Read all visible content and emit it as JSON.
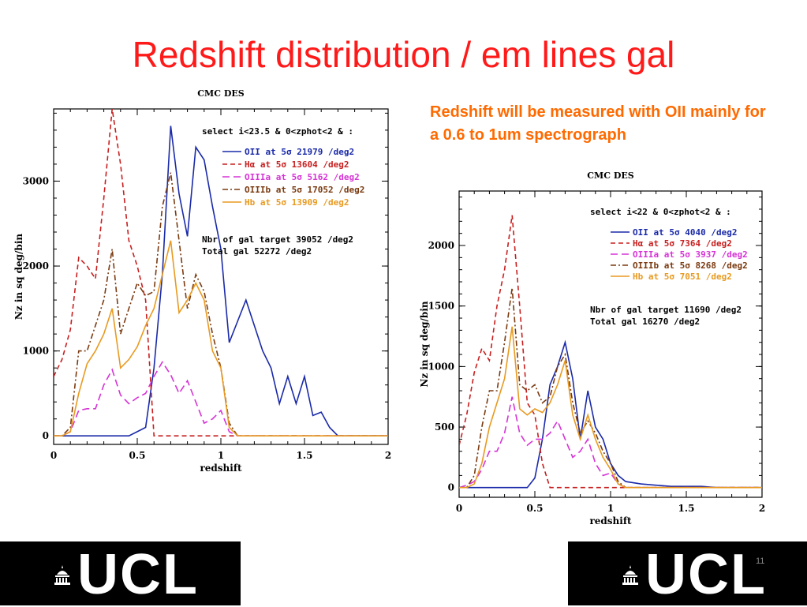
{
  "slide": {
    "title": "Redshift distribution / em lines gal",
    "note": "Redshift will be measured with OII mainly for a 0.6 to 1um spectrograph",
    "logo_text": "UCL",
    "page_number": "11"
  },
  "chart_data": [
    {
      "type": "line",
      "title": "CMC DES",
      "xlabel": "redshift",
      "ylabel": "Nz in sq deg/bin",
      "xlim": [
        0,
        2
      ],
      "ylim": [
        -100,
        3850
      ],
      "xticks": [
        0,
        0.5,
        1,
        1.5,
        2
      ],
      "xtick_labels": [
        "0",
        "0.5",
        "1",
        "1.5",
        "2"
      ],
      "yticks": [
        0,
        1000,
        2000,
        3000
      ],
      "ytick_labels": [
        "0",
        "1000",
        "2000",
        "3000"
      ],
      "selection": "select i<23.5 & 0<zphot<2 & :",
      "info": [
        "Nbr of gal target 39052 /deg2",
        "Total gal 52272 /deg2"
      ],
      "legend_position": "top-right",
      "series": [
        {
          "name": "OII at 5σ 21979 /deg2",
          "color": "#1a2aa8",
          "dash": "",
          "x": [
            0,
            0.05,
            0.1,
            0.15,
            0.2,
            0.25,
            0.3,
            0.35,
            0.4,
            0.45,
            0.5,
            0.55,
            0.6,
            0.65,
            0.7,
            0.75,
            0.8,
            0.85,
            0.9,
            0.95,
            1.0,
            1.05,
            1.1,
            1.15,
            1.2,
            1.25,
            1.3,
            1.35,
            1.4,
            1.45,
            1.5,
            1.55,
            1.6,
            1.65,
            1.7,
            1.75,
            2.0
          ],
          "y": [
            0,
            0,
            0,
            0,
            0,
            0,
            0,
            0,
            0,
            0,
            50,
            100,
            800,
            1900,
            3650,
            2850,
            2350,
            3400,
            3250,
            2700,
            2200,
            1100,
            1350,
            1600,
            1300,
            1000,
            800,
            380,
            700,
            380,
            700,
            240,
            280,
            100,
            0,
            0,
            0
          ]
        },
        {
          "name": "Hα at 5σ 13604 /deg2",
          "color": "#c81e1e",
          "dash": "6,4",
          "x": [
            0,
            0.05,
            0.1,
            0.15,
            0.2,
            0.25,
            0.3,
            0.35,
            0.4,
            0.45,
            0.5,
            0.55,
            0.6,
            0.65,
            0.7,
            2.0
          ],
          "y": [
            700,
            900,
            1250,
            2100,
            2000,
            1850,
            2800,
            3850,
            3200,
            2300,
            2000,
            1600,
            0,
            0,
            0,
            0
          ]
        },
        {
          "name": "OIIIa at 5σ 5162 /deg2",
          "color": "#d633d6",
          "dash": "9,5",
          "x": [
            0,
            0.05,
            0.1,
            0.15,
            0.2,
            0.25,
            0.3,
            0.35,
            0.4,
            0.45,
            0.5,
            0.55,
            0.6,
            0.65,
            0.7,
            0.75,
            0.8,
            0.85,
            0.9,
            0.95,
            1.0,
            1.05,
            1.1,
            2.0
          ],
          "y": [
            0,
            0,
            50,
            300,
            320,
            320,
            600,
            780,
            480,
            380,
            450,
            500,
            700,
            870,
            720,
            500,
            650,
            400,
            150,
            200,
            300,
            50,
            0,
            0
          ]
        },
        {
          "name": "OIIIb at 5σ 17052 /deg2",
          "color": "#7a3a10",
          "dash": "7,3,2,3",
          "x": [
            0,
            0.05,
            0.1,
            0.15,
            0.2,
            0.25,
            0.3,
            0.35,
            0.4,
            0.45,
            0.5,
            0.55,
            0.6,
            0.65,
            0.7,
            0.75,
            0.8,
            0.85,
            0.9,
            0.95,
            1.0,
            1.05,
            1.1,
            2.0
          ],
          "y": [
            0,
            0,
            100,
            1000,
            1000,
            1300,
            1600,
            2200,
            1200,
            1500,
            1800,
            1650,
            1700,
            2700,
            3100,
            2300,
            1500,
            1900,
            1700,
            1200,
            800,
            150,
            0,
            0
          ]
        },
        {
          "name": "Hb at 5σ 13909 /deg2",
          "color": "#e89a20",
          "dash": "",
          "x": [
            0,
            0.05,
            0.1,
            0.15,
            0.2,
            0.25,
            0.3,
            0.35,
            0.4,
            0.45,
            0.5,
            0.55,
            0.6,
            0.65,
            0.7,
            0.75,
            0.8,
            0.85,
            0.9,
            0.95,
            1.0,
            1.05,
            1.1,
            2.0
          ],
          "y": [
            0,
            0,
            50,
            500,
            850,
            1000,
            1200,
            1500,
            800,
            900,
            1050,
            1300,
            1500,
            1900,
            2300,
            1450,
            1600,
            1800,
            1600,
            1000,
            800,
            100,
            0,
            0
          ]
        }
      ]
    },
    {
      "type": "line",
      "title": "CMC DES",
      "xlabel": "redshift",
      "ylabel": "Nz in sq deg/bin",
      "xlim": [
        0,
        2
      ],
      "ylim": [
        -80,
        2450
      ],
      "xticks": [
        0,
        0.5,
        1,
        1.5,
        2
      ],
      "xtick_labels": [
        "0",
        "0.5",
        "1",
        "1.5",
        "2"
      ],
      "yticks": [
        0,
        500,
        1000,
        1500,
        2000
      ],
      "ytick_labels": [
        "0",
        "500",
        "1000",
        "1500",
        "2000"
      ],
      "selection": "select i<22 & 0<zphot<2 & :",
      "info": [
        "Nbr of gal target 11690 /deg2",
        "Total gal 16270 /deg2"
      ],
      "legend_position": "top-right",
      "series": [
        {
          "name": "OII at 5σ 4040 /deg2",
          "color": "#1a2aa8",
          "dash": "",
          "x": [
            0,
            0.05,
            0.1,
            0.15,
            0.2,
            0.25,
            0.3,
            0.35,
            0.4,
            0.45,
            0.5,
            0.55,
            0.6,
            0.65,
            0.7,
            0.75,
            0.8,
            0.85,
            0.9,
            0.95,
            1.0,
            1.05,
            1.1,
            1.2,
            1.3,
            1.4,
            1.6,
            1.7,
            2.0
          ],
          "y": [
            0,
            0,
            0,
            0,
            0,
            0,
            0,
            0,
            0,
            0,
            80,
            400,
            850,
            1000,
            1200,
            900,
            400,
            800,
            500,
            400,
            200,
            100,
            50,
            30,
            20,
            10,
            10,
            0,
            0
          ]
        },
        {
          "name": "Hα at 5σ 7364 /deg2",
          "color": "#c81e1e",
          "dash": "6,4",
          "x": [
            0,
            0.05,
            0.1,
            0.15,
            0.2,
            0.25,
            0.3,
            0.35,
            0.4,
            0.45,
            0.5,
            0.55,
            0.6,
            2.0
          ],
          "y": [
            350,
            600,
            950,
            1150,
            1050,
            1500,
            1800,
            2250,
            1500,
            700,
            600,
            200,
            0,
            0
          ]
        },
        {
          "name": "OIIIa at 5σ 3937 /deg2",
          "color": "#d633d6",
          "dash": "9,5",
          "x": [
            0,
            0.05,
            0.1,
            0.15,
            0.2,
            0.25,
            0.3,
            0.35,
            0.4,
            0.45,
            0.5,
            0.55,
            0.6,
            0.65,
            0.7,
            0.75,
            0.8,
            0.85,
            0.9,
            0.95,
            1.0,
            1.05,
            1.1,
            2.0
          ],
          "y": [
            0,
            20,
            50,
            150,
            300,
            300,
            450,
            750,
            450,
            350,
            400,
            400,
            450,
            550,
            400,
            250,
            300,
            400,
            200,
            100,
            120,
            30,
            0,
            0
          ]
        },
        {
          "name": "OIIIb at 5σ 8268 /deg2",
          "color": "#7a3a10",
          "dash": "7,3,2,3",
          "x": [
            0,
            0.05,
            0.1,
            0.15,
            0.2,
            0.25,
            0.3,
            0.35,
            0.4,
            0.45,
            0.5,
            0.55,
            0.6,
            0.65,
            0.7,
            0.75,
            0.8,
            0.85,
            0.9,
            0.95,
            1.0,
            1.05,
            1.1,
            2.0
          ],
          "y": [
            0,
            0,
            100,
            500,
            800,
            800,
            1200,
            1650,
            850,
            800,
            850,
            700,
            750,
            1000,
            1100,
            700,
            450,
            550,
            450,
            300,
            200,
            50,
            0,
            0
          ]
        },
        {
          "name": "Hb at 5σ 7051 /deg2",
          "color": "#e89a20",
          "dash": "",
          "x": [
            0,
            0.05,
            0.1,
            0.15,
            0.2,
            0.25,
            0.3,
            0.35,
            0.4,
            0.45,
            0.5,
            0.55,
            0.6,
            0.65,
            0.7,
            0.75,
            0.8,
            0.85,
            0.9,
            0.95,
            1.0,
            1.05,
            1.1,
            2.0
          ],
          "y": [
            0,
            0,
            30,
            200,
            500,
            700,
            900,
            1330,
            650,
            600,
            650,
            620,
            700,
            850,
            1050,
            600,
            400,
            600,
            400,
            250,
            150,
            30,
            0,
            0
          ]
        }
      ]
    }
  ]
}
